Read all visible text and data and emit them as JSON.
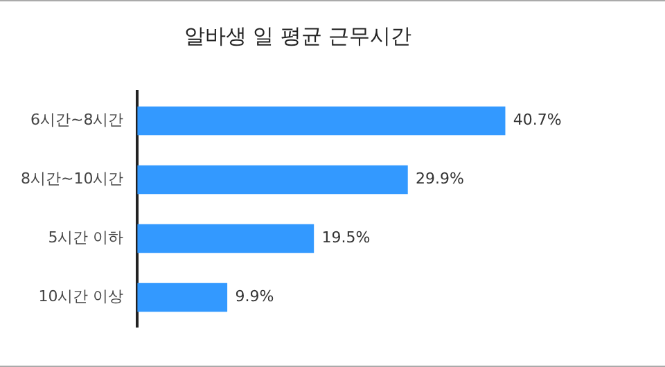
{
  "chart_data": {
    "type": "bar",
    "orientation": "horizontal",
    "title": "알바생 일 평균 근무시간",
    "categories": [
      "6시간~8시간",
      "8시간~10시간",
      "5시간 이하",
      "10시간 이상"
    ],
    "values": [
      40.7,
      29.9,
      19.5,
      9.9
    ],
    "color": "#3399ff",
    "value_labels": [
      "40.7%",
      "29.9%",
      "19.5%",
      "9.9%"
    ],
    "grid": false,
    "legend": false
  }
}
